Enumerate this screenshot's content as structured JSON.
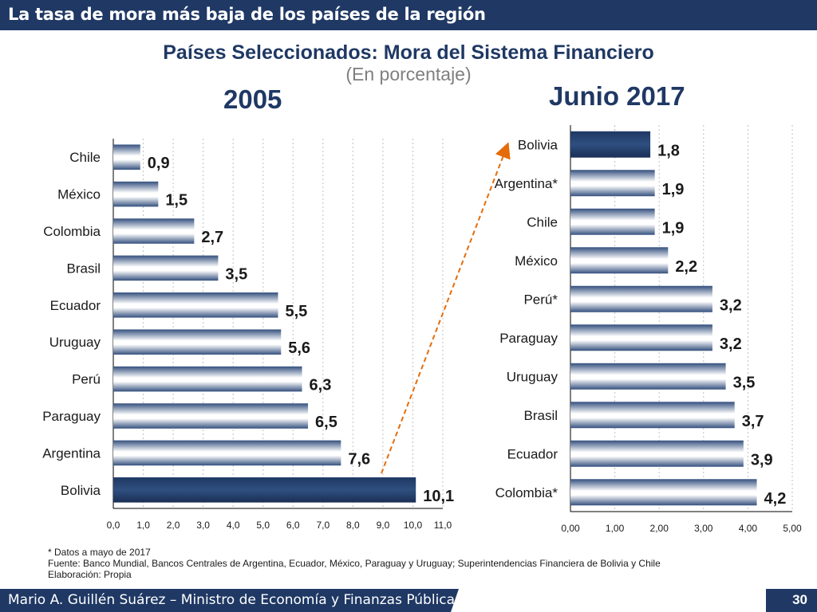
{
  "header": {
    "banner_title": "La tasa de mora más baja de los países de la región"
  },
  "title": "Países Seleccionados: Mora del Sistema Financiero",
  "subtitle": "(En porcentaje)",
  "colors": {
    "navy": "#1f3864",
    "highlight_bar": "#1f3864",
    "bar_light": "#ffffff",
    "bar_dark": "#34507e",
    "arrow": "#e46c0a"
  },
  "chart_data": [
    {
      "type": "bar",
      "orientation": "horizontal",
      "title": "2005",
      "categories": [
        "Chile",
        "México",
        "Colombia",
        "Brasil",
        "Ecuador",
        "Uruguay",
        "Perú",
        "Paraguay",
        "Argentina",
        "Bolivia"
      ],
      "values": [
        0.9,
        1.5,
        2.7,
        3.5,
        5.5,
        5.6,
        6.3,
        6.5,
        7.6,
        10.1
      ],
      "value_labels": [
        "0,9",
        "1,5",
        "2,7",
        "3,5",
        "5,5",
        "5,6",
        "6,3",
        "6,5",
        "7,6",
        "10,1"
      ],
      "xlim": [
        0,
        11
      ],
      "ticks": [
        "0,0",
        "1,0",
        "2,0",
        "3,0",
        "4,0",
        "5,0",
        "6,0",
        "7,0",
        "8,0",
        "9,0",
        "10,0",
        "11,0"
      ],
      "highlight": "Bolivia",
      "grid": true
    },
    {
      "type": "bar",
      "orientation": "horizontal",
      "title": "Junio 2017",
      "categories": [
        "Bolivia",
        "Argentina*",
        "Chile",
        "México",
        "Perú*",
        "Paraguay",
        "Uruguay",
        "Brasil",
        "Ecuador",
        "Colombia*"
      ],
      "values": [
        1.8,
        1.9,
        1.9,
        2.2,
        3.2,
        3.2,
        3.5,
        3.7,
        3.9,
        4.2
      ],
      "value_labels": [
        "1,8",
        "1,9",
        "1,9",
        "2,2",
        "3,2",
        "3,2",
        "3,5",
        "3,7",
        "3,9",
        "4,2"
      ],
      "xlim": [
        0,
        5
      ],
      "ticks": [
        "0,00",
        "1,00",
        "2,00",
        "3,00",
        "4,00",
        "5,00"
      ],
      "highlight": "Bolivia",
      "grid": true
    }
  ],
  "notes": {
    "line1": "* Datos a mayo de 2017",
    "line2": "Fuente: Banco Mundial, Bancos Centrales de Argentina, Ecuador, México, Paraguay y Uruguay; Superintendencias Financiera de Bolivia y Chile",
    "line3": "Elaboración: Propia"
  },
  "footer": {
    "author": "Mario A. Guillén Suárez – Ministro de Economía y Finanzas Públicas",
    "page": "30"
  }
}
